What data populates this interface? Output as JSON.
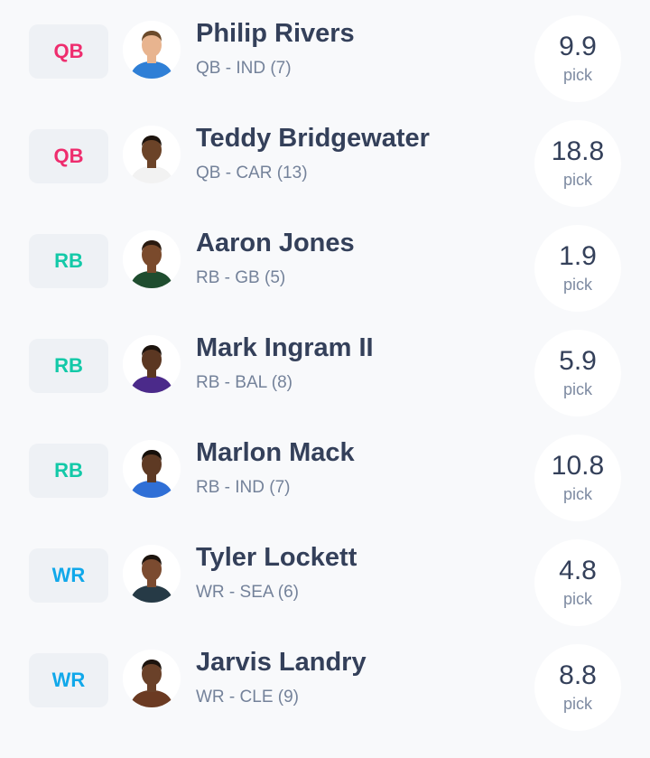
{
  "colors": {
    "QB": "#ee2d6e",
    "RB": "#13c9a8",
    "WR": "#11a8ea"
  },
  "players": [
    {
      "position": "QB",
      "name": "Philip Rivers",
      "meta": "QB - IND (7)",
      "value": "9.9",
      "pick_label": "pick",
      "skin": "#e8b48f",
      "hair": "#6b4a2b",
      "jersey": "#2f7fd6"
    },
    {
      "position": "QB",
      "name": "Teddy Bridgewater",
      "meta": "QB - CAR (13)",
      "value": "18.8",
      "pick_label": "pick",
      "skin": "#6b4328",
      "hair": "#1d140e",
      "jersey": "#f2f2f2"
    },
    {
      "position": "RB",
      "name": "Aaron Jones",
      "meta": "RB - GB (5)",
      "value": "1.9",
      "pick_label": "pick",
      "skin": "#7a4a2c",
      "hair": "#2a1a10",
      "jersey": "#1f4d2f"
    },
    {
      "position": "RB",
      "name": "Mark Ingram II",
      "meta": "RB - BAL (8)",
      "value": "5.9",
      "pick_label": "pick",
      "skin": "#5b3722",
      "hair": "#1d140e",
      "jersey": "#4b2a8a"
    },
    {
      "position": "RB",
      "name": "Marlon Mack",
      "meta": "RB - IND (7)",
      "value": "10.8",
      "pick_label": "pick",
      "skin": "#5e3a24",
      "hair": "#160f0a",
      "jersey": "#2f6fd6"
    },
    {
      "position": "WR",
      "name": "Tyler Lockett",
      "meta": "WR - SEA (6)",
      "value": "4.8",
      "pick_label": "pick",
      "skin": "#7b4b30",
      "hair": "#1d140e",
      "jersey": "#263a46"
    },
    {
      "position": "WR",
      "name": "Jarvis Landry",
      "meta": "WR - CLE (9)",
      "value": "8.8",
      "pick_label": "pick",
      "skin": "#6a4129",
      "hair": "#1d140e",
      "jersey": "#6b3a22"
    }
  ]
}
